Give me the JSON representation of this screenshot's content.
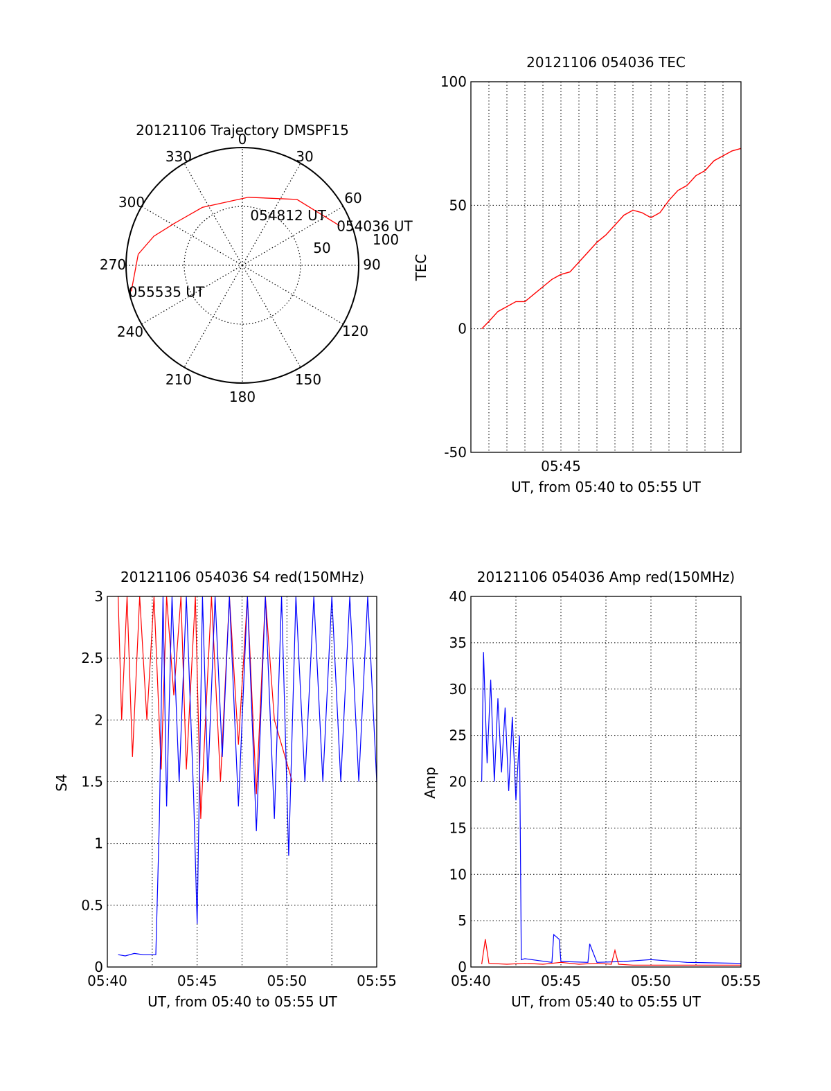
{
  "chart_data": [
    {
      "type": "polar",
      "title": "20121106 Trajectory DMSPF15",
      "azimuth_labels": [
        "0",
        "30",
        "60",
        "90",
        "120",
        "150",
        "180",
        "210",
        "240",
        "270",
        "300",
        "330"
      ],
      "radial_labels": [
        "50",
        "100"
      ],
      "rlim": [
        0,
        100
      ],
      "grid": true,
      "series": [
        {
          "color": "#ff0000",
          "points": [
            {
              "az": 68,
              "el": 10
            },
            {
              "az": 40,
              "el": 27
            },
            {
              "az": 5,
              "el": 42
            },
            {
              "az": -35,
              "el": 40
            },
            {
              "az": -58,
              "el": 32
            },
            {
              "az": -72,
              "el": 20
            },
            {
              "az": -84,
              "el": 10
            },
            {
              "az": -103,
              "el": 2
            }
          ]
        }
      ],
      "annotations": [
        {
          "text": "054036 UT",
          "az": 68,
          "el": 10
        },
        {
          "text": "054812 UT",
          "az": 12,
          "el": 56
        },
        {
          "text": "055535 UT",
          "az": -103,
          "el": 2
        }
      ]
    },
    {
      "type": "line",
      "title": "20121106 054036 TEC",
      "xlabel": "UT, from 05:40 to 05:55 UT",
      "ylabel": "TEC",
      "xlim": [
        0,
        15
      ],
      "ylim": [
        -50,
        100
      ],
      "xticks": [
        {
          "value": 5,
          "label": "05:45"
        }
      ],
      "yticks": [
        -50,
        0,
        50,
        100
      ],
      "grid": true,
      "series": [
        {
          "color": "#ff0000",
          "x": [
            0.6,
            1.0,
            1.5,
            2.0,
            2.5,
            3.0,
            3.5,
            4.0,
            4.5,
            5.0,
            5.5,
            6.0,
            6.5,
            7.0,
            7.5,
            8.0,
            8.5,
            9.0,
            9.5,
            10.0,
            10.5,
            11.0,
            11.5,
            12.0,
            12.5,
            13.0,
            13.5,
            14.0,
            14.5,
            15.0
          ],
          "y": [
            0,
            3,
            7,
            9,
            11,
            11,
            14,
            17,
            20,
            22,
            23,
            27,
            31,
            35,
            38,
            42,
            46,
            48,
            47,
            45,
            47,
            52,
            56,
            58,
            62,
            64,
            68,
            70,
            72,
            73
          ]
        }
      ]
    },
    {
      "type": "line",
      "title": "20121106 054036 S4 red(150MHz)",
      "xlabel": "UT, from 05:40 to 05:55 UT",
      "ylabel": "S4",
      "xlim": [
        0,
        15
      ],
      "ylim": [
        0,
        3
      ],
      "xticks": [
        {
          "value": 0,
          "label": "05:40"
        },
        {
          "value": 5,
          "label": "05:45"
        },
        {
          "value": 10,
          "label": "05:50"
        },
        {
          "value": 15,
          "label": "05:55"
        }
      ],
      "yticks": [
        {
          "value": 0,
          "label": "0"
        },
        {
          "value": 0.5,
          "label": "0.5"
        },
        {
          "value": 1,
          "label": "1"
        },
        {
          "value": 1.5,
          "label": "1.5"
        },
        {
          "value": 2,
          "label": "2"
        },
        {
          "value": 2.5,
          "label": "2.5"
        },
        {
          "value": 3,
          "label": "3"
        }
      ],
      "grid": true,
      "series": [
        {
          "color": "#ff0000",
          "x": [
            0.6,
            0.8,
            1.1,
            1.4,
            1.8,
            2.2,
            2.6,
            3.0,
            3.3,
            3.7,
            4.1,
            4.4,
            4.9,
            5.2,
            5.8,
            6.3,
            6.8,
            7.3,
            7.8,
            8.3,
            8.8,
            9.3,
            9.9,
            10.3
          ],
          "y": [
            3,
            2.0,
            3,
            1.7,
            3,
            2.0,
            3,
            1.6,
            3,
            2.2,
            3,
            1.6,
            3,
            1.2,
            3,
            1.5,
            3,
            1.8,
            3,
            1.4,
            3,
            2.0,
            1.7,
            1.5
          ]
        },
        {
          "color": "#0000ff",
          "x": [
            0.6,
            1.0,
            1.5,
            2.0,
            2.7,
            2.9,
            3.1,
            3.3,
            3.6,
            4.0,
            4.4,
            4.8,
            5.0,
            5.3,
            5.6,
            6.0,
            6.4,
            6.8,
            7.3,
            7.8,
            8.3,
            8.8,
            9.3,
            9.7,
            10.1,
            10.5,
            11.0,
            11.5,
            12.0,
            12.5,
            13.0,
            13.5,
            14.0,
            14.5,
            15.0
          ],
          "y": [
            0.1,
            0.09,
            0.11,
            0.1,
            0.1,
            1.2,
            3,
            1.3,
            3,
            1.5,
            3,
            1.4,
            0.35,
            3,
            1.5,
            3,
            1.7,
            3,
            1.3,
            3,
            1.1,
            3,
            1.2,
            3,
            0.9,
            3,
            1.5,
            3,
            1.5,
            3,
            1.5,
            3,
            1.5,
            3,
            1.5
          ]
        }
      ]
    },
    {
      "type": "line",
      "title": "20121106 054036 Amp red(150MHz)",
      "xlabel": "UT, from 05:40 to 05:55 UT",
      "ylabel": "Amp",
      "xlim": [
        0,
        15
      ],
      "ylim": [
        0,
        40
      ],
      "xticks": [
        {
          "value": 0,
          "label": "05:40"
        },
        {
          "value": 5,
          "label": "05:45"
        },
        {
          "value": 10,
          "label": "05:50"
        },
        {
          "value": 15,
          "label": "05:55"
        }
      ],
      "yticks": [
        0,
        5,
        10,
        15,
        20,
        25,
        30,
        35,
        40
      ],
      "grid": true,
      "series": [
        {
          "color": "#0000ff",
          "x": [
            0.6,
            0.7,
            0.9,
            1.1,
            1.3,
            1.5,
            1.7,
            1.9,
            2.1,
            2.3,
            2.5,
            2.7,
            2.8,
            3.0,
            4.5,
            4.6,
            4.9,
            5.0,
            6.5,
            6.6,
            7.0,
            8.5,
            10.0,
            12.0,
            15.0
          ],
          "y": [
            20,
            34,
            22,
            31,
            20,
            29,
            21,
            28,
            19,
            27,
            18,
            25,
            0.8,
            0.9,
            0.5,
            3.5,
            3.0,
            0.6,
            0.5,
            2.5,
            0.5,
            0.6,
            0.8,
            0.5,
            0.4
          ]
        },
        {
          "color": "#ff0000",
          "x": [
            0.6,
            0.8,
            1.0,
            2.0,
            3.0,
            4.0,
            5.0,
            6.0,
            7.0,
            7.8,
            8.0,
            8.2,
            9.0,
            12.0,
            15.0
          ],
          "y": [
            0.3,
            3.0,
            0.4,
            0.3,
            0.4,
            0.3,
            0.5,
            0.3,
            0.4,
            0.3,
            1.8,
            0.3,
            0.2,
            0.2,
            0.2
          ]
        }
      ]
    }
  ]
}
